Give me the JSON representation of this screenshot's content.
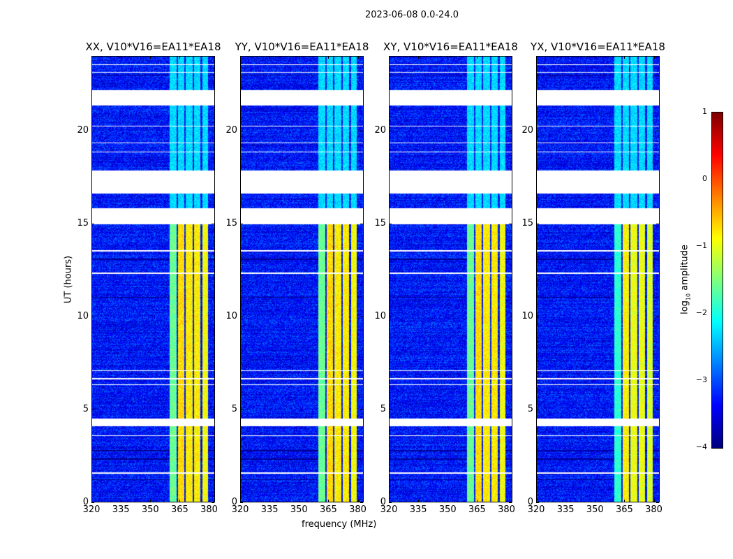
{
  "chart_data": {
    "type": "heatmap",
    "title": "2023-06-08 0.0-24.0",
    "xlabel": "frequency (MHz)",
    "ylabel": "UT (hours)",
    "xlim": [
      320,
      383
    ],
    "ylim": [
      0,
      24
    ],
    "xticks": [
      "320",
      "335",
      "350",
      "365",
      "380"
    ],
    "yticks": [
      "0",
      "5",
      "10",
      "15",
      "20"
    ],
    "panels": [
      {
        "title": "XX, V10*V16=EA11*EA18",
        "rfi_strength": 1.0
      },
      {
        "title": "YY, V10*V16=EA11*EA18",
        "rfi_strength": 1.0
      },
      {
        "title": "XY, V10*V16=EA11*EA18",
        "rfi_strength": 1.0
      },
      {
        "title": "YX, V10*V16=EA11*EA18",
        "rfi_strength": 0.8
      }
    ],
    "background_log10_amplitude": -3.3,
    "rfi_bands_mhz": [
      [
        360,
        363.5,
        -1.6
      ],
      [
        364,
        367.5,
        -0.7
      ],
      [
        368,
        371.5,
        -0.8
      ],
      [
        372.5,
        375.5,
        -0.8
      ],
      [
        376.5,
        379.5,
        -0.9
      ]
    ],
    "rfi_active_hours": [
      0,
      15
    ],
    "flagged_hours": [
      [
        4.1,
        4.5
      ],
      [
        14.95,
        15.8
      ],
      [
        16.6,
        17.85
      ],
      [
        21.35,
        22.15
      ],
      [
        23.5,
        23.55
      ],
      [
        23.1,
        23.15
      ],
      [
        20.2,
        20.25
      ],
      [
        19.3,
        19.35
      ],
      [
        18.8,
        18.85
      ],
      [
        7.05,
        7.1
      ],
      [
        6.6,
        6.7
      ],
      [
        6.3,
        6.35
      ],
      [
        1.55,
        1.6
      ],
      [
        3.55,
        3.6
      ],
      [
        12.3,
        12.35
      ],
      [
        13.5,
        13.55
      ]
    ],
    "dark_hours": [
      [
        1.2,
        1.25
      ],
      [
        2.3,
        2.35
      ],
      [
        2.75,
        2.8
      ],
      [
        11.0,
        11.05
      ],
      [
        13.05,
        13.1
      ],
      [
        22.95,
        23.0
      ]
    ],
    "colorbar": {
      "label": "log10 amplitude",
      "label_base": "log",
      "label_sub": "10",
      "label_rest": " amplitude",
      "range": [
        -4,
        1
      ],
      "ticks": [
        "1",
        "0",
        "−1",
        "−2",
        "−3",
        "−4"
      ],
      "colormap": "jet"
    }
  }
}
